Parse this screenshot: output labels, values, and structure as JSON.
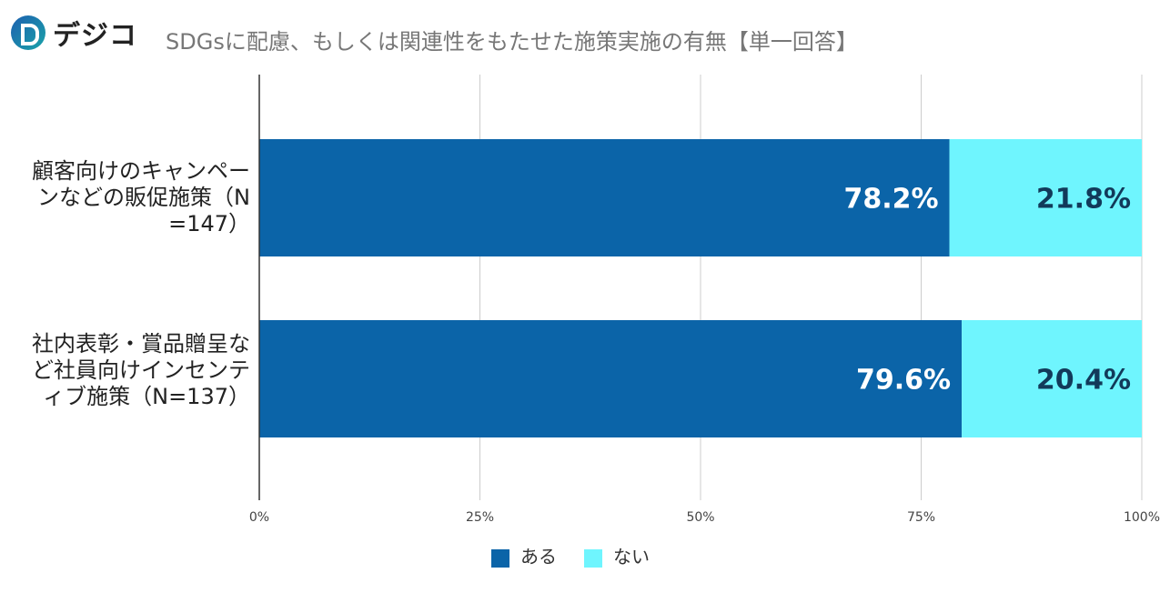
{
  "logo": {
    "text": "デジコ"
  },
  "chart_data": {
    "type": "bar",
    "orientation": "horizontal-stacked-100",
    "title": "SDGsに配慮、もしくは関連性をもたせた施策実施の有無【単一回答】",
    "categories": [
      "顧客向けのキャンペーンなどの販促施策（N=147）",
      "社内表彰・賞品贈呈など社員向けインセンティブ施策（N=137）"
    ],
    "series": [
      {
        "name": "ある",
        "values": [
          78.2,
          79.6
        ],
        "labels": [
          "78.2%",
          "79.6%"
        ],
        "color": "#0b64a8"
      },
      {
        "name": "ない",
        "values": [
          21.8,
          20.4
        ],
        "labels": [
          "21.8%",
          "20.4%"
        ],
        "color": "#6ff5fe"
      }
    ],
    "xlim": [
      0,
      100
    ],
    "xticks": [
      "0%",
      "25%",
      "50%",
      "75%",
      "100%"
    ],
    "grid": true,
    "legend": "bottom"
  }
}
